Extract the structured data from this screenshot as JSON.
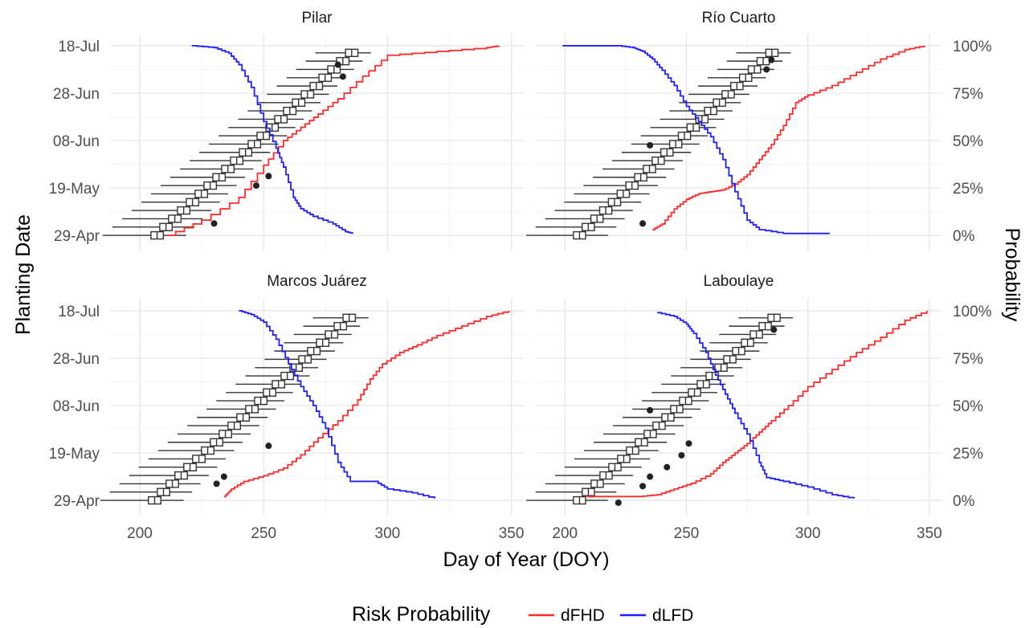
{
  "chart_data": {
    "type": "line",
    "xlabel": "Day of Year (DOY)",
    "ylabel": "Planting Date",
    "ylabel_right": "Probability",
    "xlim": [
      188,
      355
    ],
    "x_ticks": [
      200,
      250,
      300,
      350
    ],
    "planting_ticks": [
      "29-Apr",
      "19-May",
      "08-Jun",
      "28-Jun",
      "18-Jul"
    ],
    "probability_ticks": [
      "0%",
      "25%",
      "50%",
      "75%",
      "100%"
    ],
    "planting_range": [
      118,
      200
    ],
    "planting_tick_doy": [
      119,
      139,
      159,
      179,
      199
    ],
    "legend": {
      "title": "Risk Probability",
      "entries": [
        {
          "name": "dFHD",
          "color": "#ff2a2a"
        },
        {
          "name": "dLFD",
          "color": "#1f1fff"
        }
      ]
    },
    "panels": [
      {
        "name": "Pilar",
        "boxes": {
          "start_doy": 119,
          "step_days": 3.5,
          "count": 23,
          "median_start": 207,
          "median_slope": 3.57,
          "q1_offset": -2.5,
          "q3_offset": 2.5,
          "whisker_low": -10,
          "whisker_high": 9,
          "whisker_shrink": 0.35
        },
        "outliers": [
          [
            230,
            124
          ],
          [
            247,
            140
          ],
          [
            252,
            144
          ],
          [
            280,
            191
          ],
          [
            282,
            186
          ]
        ],
        "series": [
          {
            "name": "dFHD",
            "x": [
              211,
              225,
              240,
              250,
              258,
              265,
              272,
              280,
              290,
              300,
              320,
              340,
              345
            ],
            "y": [
              0,
              0.08,
              0.2,
              0.37,
              0.5,
              0.57,
              0.64,
              0.72,
              0.84,
              0.95,
              0.97,
              0.99,
              1.0
            ]
          },
          {
            "name": "dLFD",
            "x": [
              221,
              230,
              236,
              240,
              245,
              250,
              255,
              258,
              262,
              265,
              270,
              278,
              283,
              286
            ],
            "y": [
              1.0,
              0.99,
              0.96,
              0.9,
              0.78,
              0.6,
              0.46,
              0.36,
              0.2,
              0.14,
              0.1,
              0.06,
              0.02,
              0.01
            ]
          }
        ]
      },
      {
        "name": "Río Cuarto",
        "boxes": {
          "start_doy": 119,
          "step_days": 3.5,
          "count": 23,
          "median_start": 206,
          "median_slope": 3.6,
          "q1_offset": -2.5,
          "q3_offset": 2.5,
          "whisker_low": -10,
          "whisker_high": 9,
          "whisker_shrink": 0.35
        },
        "outliers": [
          [
            232,
            124
          ],
          [
            235,
            157
          ],
          [
            283,
            189
          ],
          [
            285,
            193
          ]
        ],
        "series": [
          {
            "name": "dFHD",
            "x": [
              236,
              240,
              245,
              250,
              255,
              260,
              265,
              270,
              275,
              280,
              285,
              290,
              295,
              300,
              310,
              320,
              330,
              340,
              348
            ],
            "y": [
              0.03,
              0.06,
              0.14,
              0.19,
              0.22,
              0.23,
              0.24,
              0.27,
              0.32,
              0.4,
              0.48,
              0.58,
              0.7,
              0.74,
              0.79,
              0.86,
              0.93,
              0.98,
              1.0
            ]
          },
          {
            "name": "dLFD",
            "x": [
              199,
              222,
              228,
              232,
              236,
              240,
              245,
              250,
              255,
              260,
              265,
              270,
              275,
              280,
              290,
              300,
              309
            ],
            "y": [
              1.0,
              1.0,
              0.99,
              0.97,
              0.93,
              0.87,
              0.79,
              0.68,
              0.6,
              0.52,
              0.4,
              0.23,
              0.08,
              0.03,
              0.01,
              0.01,
              0.01
            ]
          }
        ]
      },
      {
        "name": "Marcos Juárez",
        "boxes": {
          "start_doy": 119,
          "step_days": 3.5,
          "count": 23,
          "median_start": 206,
          "median_slope": 3.57,
          "q1_offset": -2.5,
          "q3_offset": 2.5,
          "whisker_low": -10,
          "whisker_high": 9,
          "whisker_shrink": 0.35
        },
        "outliers": [
          [
            231,
            126
          ],
          [
            234,
            129
          ],
          [
            252,
            142
          ]
        ],
        "series": [
          {
            "name": "dFHD",
            "x": [
              234,
              237,
              242,
              250,
              258,
              265,
              272,
              280,
              288,
              293,
              298,
              305,
              312,
              320,
              330,
              340,
              349
            ],
            "y": [
              0.02,
              0.06,
              0.1,
              0.13,
              0.17,
              0.24,
              0.33,
              0.42,
              0.53,
              0.64,
              0.72,
              0.78,
              0.82,
              0.87,
              0.92,
              0.97,
              1.0
            ]
          },
          {
            "name": "dLFD",
            "x": [
              240,
              245,
              250,
              255,
              260,
              265,
              270,
              275,
              280,
              285,
              295,
              300,
              310,
              319
            ],
            "y": [
              1.0,
              0.98,
              0.94,
              0.85,
              0.72,
              0.6,
              0.5,
              0.38,
              0.2,
              0.1,
              0.1,
              0.06,
              0.04,
              0.01
            ]
          }
        ]
      },
      {
        "name": "Laboulaye",
        "boxes": {
          "start_doy": 119,
          "step_days": 3.5,
          "count": 23,
          "median_start": 206,
          "median_slope": 3.64,
          "q1_offset": -2.5,
          "q3_offset": 2.5,
          "whisker_low": -10,
          "whisker_high": 9,
          "whisker_shrink": 0.35
        },
        "outliers": [
          [
            222,
            118
          ],
          [
            232,
            125
          ],
          [
            235,
            129
          ],
          [
            242,
            133
          ],
          [
            248,
            138
          ],
          [
            251,
            143
          ],
          [
            235,
            157
          ],
          [
            286,
            191
          ]
        ],
        "series": [
          {
            "name": "dFHD",
            "x": [
              209,
              230,
              238,
              245,
              252,
              260,
              265,
              270,
              275,
              280,
              285,
              292,
              300,
              310,
              320,
              330,
              340,
              349
            ],
            "y": [
              0.02,
              0.02,
              0.03,
              0.06,
              0.09,
              0.14,
              0.2,
              0.25,
              0.3,
              0.36,
              0.42,
              0.5,
              0.6,
              0.69,
              0.78,
              0.86,
              0.95,
              1.0
            ]
          },
          {
            "name": "dLFD",
            "x": [
              238,
              245,
              250,
              253,
              258,
              262,
              266,
              270,
              275,
              280,
              283,
              290,
              300,
              310,
              319
            ],
            "y": [
              0.99,
              0.97,
              0.93,
              0.88,
              0.78,
              0.66,
              0.56,
              0.46,
              0.35,
              0.2,
              0.12,
              0.1,
              0.07,
              0.03,
              0.01
            ]
          }
        ]
      }
    ]
  }
}
